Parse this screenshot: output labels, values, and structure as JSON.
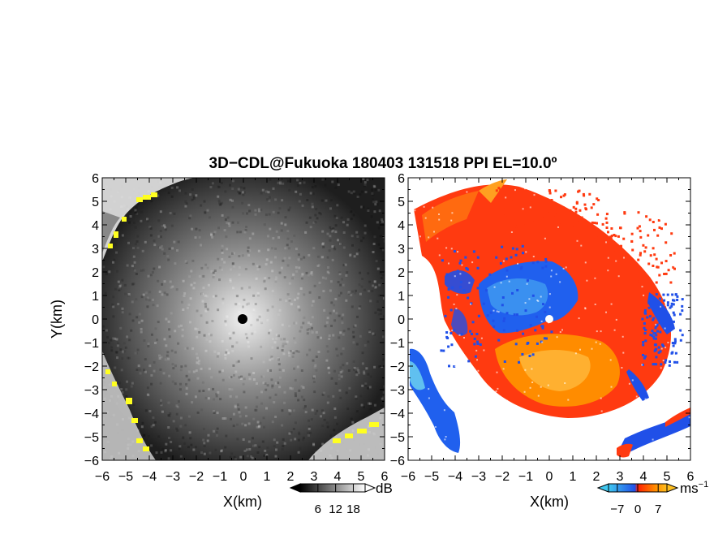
{
  "chart_data": {
    "type": "heatmap",
    "title": "3D−CDL@Fukuoka 180403 131518 PPI EL=10.0º",
    "ylabel": "Y(km)",
    "panels": [
      {
        "quantity": "backscatter intensity",
        "xlabel": "X(km)",
        "xlim": [
          -6,
          6
        ],
        "ylim": [
          -6,
          6
        ],
        "x_ticks": [
          "−6",
          "−5",
          "−4",
          "−3",
          "−2",
          "−1",
          "0",
          "1",
          "2",
          "3",
          "4",
          "5",
          "6"
        ],
        "y_ticks": [
          "6",
          "5",
          "4",
          "3",
          "2",
          "1",
          "0",
          "−1",
          "−2",
          "−3",
          "−4",
          "−5",
          "−6"
        ],
        "colorbar": {
          "unit": "dB",
          "ticks": [
            "6",
            "12",
            "18"
          ],
          "range": [
            0,
            22
          ],
          "colors": [
            "#000000",
            "#ffffff"
          ]
        },
        "radar_center": [
          0,
          0
        ]
      },
      {
        "quantity": "radial velocity",
        "xlabel": "X(km)",
        "xlim": [
          -6,
          6
        ],
        "ylim": [
          -6,
          6
        ],
        "x_ticks": [
          "−6",
          "−5",
          "−4",
          "−3",
          "−2",
          "−1",
          "0",
          "1",
          "2",
          "3",
          "4",
          "5",
          "6"
        ],
        "y_ticks": [
          "6",
          "5",
          "4",
          "3",
          "2",
          "1",
          "0",
          "−1",
          "−2",
          "−3",
          "−4",
          "−5",
          "−6"
        ],
        "colorbar": {
          "unit": "ms",
          "unit_exp": "−1",
          "ticks": [
            "−7",
            "0",
            "7"
          ],
          "range": [
            -10,
            10
          ],
          "colors": [
            "#40c8f0",
            "#2050e8",
            "#ff2000",
            "#ff8c00",
            "#ffc020"
          ]
        },
        "radar_center": [
          0,
          0
        ]
      }
    ]
  }
}
